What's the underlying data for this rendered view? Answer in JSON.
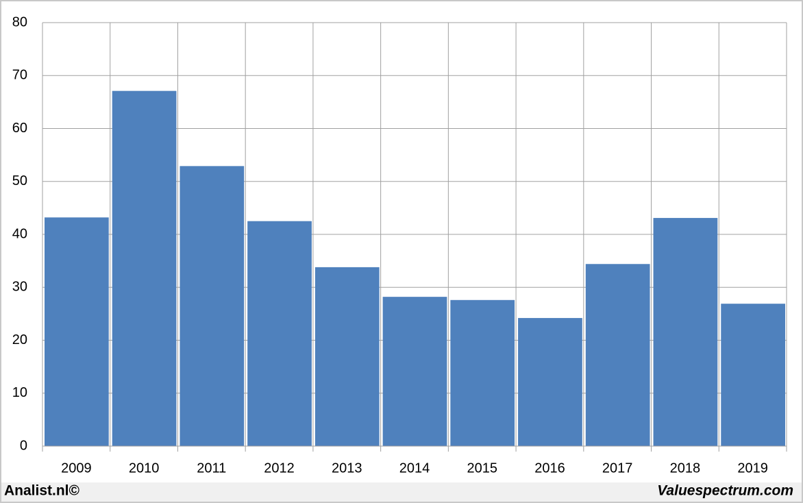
{
  "chart_data": {
    "type": "bar",
    "categories": [
      "2009",
      "2010",
      "2011",
      "2012",
      "2013",
      "2014",
      "2015",
      "2016",
      "2017",
      "2018",
      "2019"
    ],
    "values": [
      43.2,
      67.1,
      52.9,
      42.5,
      33.8,
      28.2,
      27.6,
      24.2,
      34.4,
      43.1,
      26.9
    ],
    "color": "#4f81bd",
    "ylim": [
      0,
      80
    ],
    "yticks": [
      0,
      10,
      20,
      30,
      40,
      50,
      60,
      70,
      80
    ],
    "grid": true,
    "footer_left": "Analist.nl©",
    "footer_right": "Valuespectrum.com"
  }
}
